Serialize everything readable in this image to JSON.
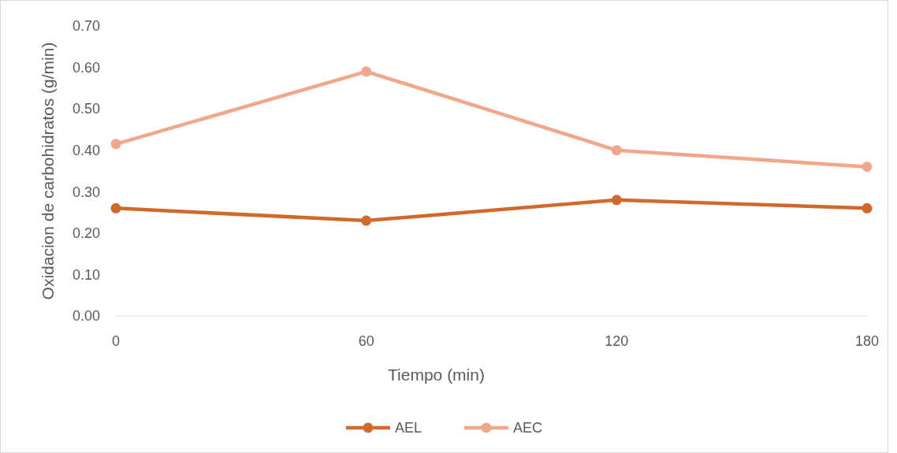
{
  "chart_data": {
    "type": "line",
    "xlabel": "Tiempo (min)",
    "ylabel": "Oxidacion de carbohidratos (g/min)",
    "x": [
      0,
      60,
      120,
      180
    ],
    "xlim": [
      0,
      180
    ],
    "xticks": [
      0,
      60,
      120,
      180
    ],
    "ylim": [
      0,
      0.7
    ],
    "yticks": [
      {
        "value": 0,
        "label": "0.00"
      },
      {
        "value": 0.1,
        "label": "0.10"
      },
      {
        "value": 0.2,
        "label": "0.20"
      },
      {
        "value": 0.3,
        "label": "0.30"
      },
      {
        "value": 0.4,
        "label": "0.40"
      },
      {
        "value": 0.5,
        "label": "0.50"
      },
      {
        "value": 0.6,
        "label": "0.60"
      },
      {
        "value": 0.7,
        "label": "0.70"
      }
    ],
    "grid": false,
    "legend": "bottom",
    "marker": "circle",
    "line_style": "solid",
    "series": [
      {
        "name": "AEL",
        "color": "#d0692a",
        "values": [
          0.26,
          0.23,
          0.28,
          0.26
        ]
      },
      {
        "name": "AEC",
        "color": "#f2a68a",
        "values": [
          0.415,
          0.59,
          0.4,
          0.36
        ]
      }
    ]
  }
}
